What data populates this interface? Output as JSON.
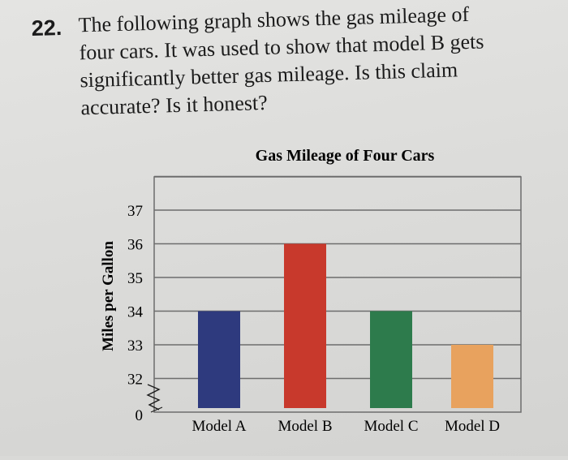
{
  "question": {
    "number": "22.",
    "lines": [
      "The following graph shows the gas mileage of",
      "four cars. It was used to show that model B gets",
      "significantly better gas mileage. Is this claim",
      "accurate? Is it honest?"
    ]
  },
  "colors": {
    "model_a": "#2e3a7e",
    "model_b": "#c8392c",
    "model_c": "#2d7b4c",
    "model_d": "#e8a25e",
    "grid": "#6d6d6d"
  },
  "chart_data": {
    "type": "bar",
    "title": "Gas Mileage of Four Cars",
    "ylabel": "Miles per Gallon",
    "xlabel": "",
    "categories": [
      "Model A",
      "Model B",
      "Model C",
      "Model D"
    ],
    "values": [
      34,
      36,
      34,
      33
    ],
    "ylim": [
      31,
      38
    ],
    "y_ticks": [
      "0",
      "32",
      "33",
      "34",
      "35",
      "36",
      "37"
    ],
    "axis_break": true,
    "grid": true,
    "legend": "none"
  }
}
